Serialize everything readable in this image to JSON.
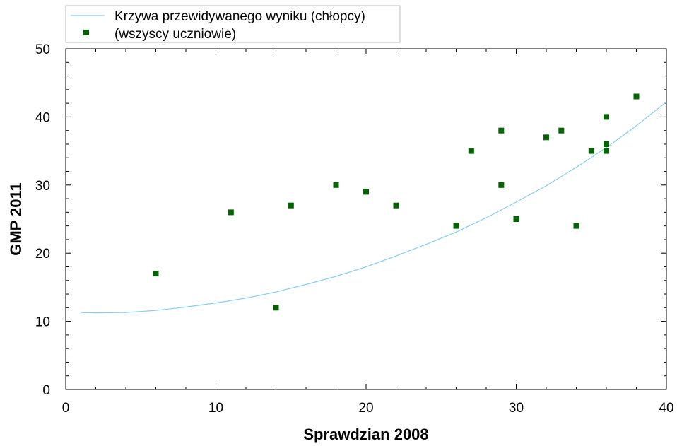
{
  "chart_data": {
    "type": "scatter",
    "xlabel": "Sprawdzian 2008",
    "ylabel": "GMP 2011",
    "xlim": [
      0,
      40
    ],
    "ylim": [
      0,
      50
    ],
    "x_ticks": [
      0,
      10,
      20,
      30,
      40
    ],
    "y_ticks": [
      0,
      10,
      20,
      30,
      40,
      50
    ],
    "x_ticks_labels": [
      "0",
      "10",
      "20",
      "30",
      "40"
    ],
    "y_ticks_labels": [
      "0",
      "10",
      "20",
      "30",
      "40",
      "50"
    ],
    "grid": false,
    "legend_position": "top-left",
    "series": [
      {
        "name": "Krzywa przewidywanego wyniku (chłopcy)",
        "kind": "line",
        "color": "#87ceeb",
        "x": [
          1,
          2,
          4,
          6,
          8,
          10,
          12,
          14,
          16,
          18,
          20,
          22,
          24,
          26,
          28,
          30,
          32,
          34,
          36,
          38,
          40
        ],
        "y": [
          11.3,
          11.25,
          11.3,
          11.6,
          12.1,
          12.7,
          13.4,
          14.3,
          15.4,
          16.6,
          18.0,
          19.6,
          21.3,
          23.1,
          25.2,
          27.5,
          29.9,
          32.6,
          35.5,
          38.7,
          42.2
        ]
      },
      {
        "name": "(wszyscy uczniowie)",
        "kind": "scatter",
        "color": "#006400",
        "x": [
          6,
          11,
          14,
          15,
          18,
          20,
          22,
          26,
          27,
          29,
          29,
          30,
          32,
          33,
          34,
          35,
          36,
          36,
          36,
          38
        ],
        "y": [
          17,
          26,
          12,
          27,
          30,
          29,
          27,
          24,
          35,
          38,
          30,
          25,
          37,
          38,
          24,
          35,
          40,
          36,
          35,
          43
        ]
      }
    ]
  }
}
